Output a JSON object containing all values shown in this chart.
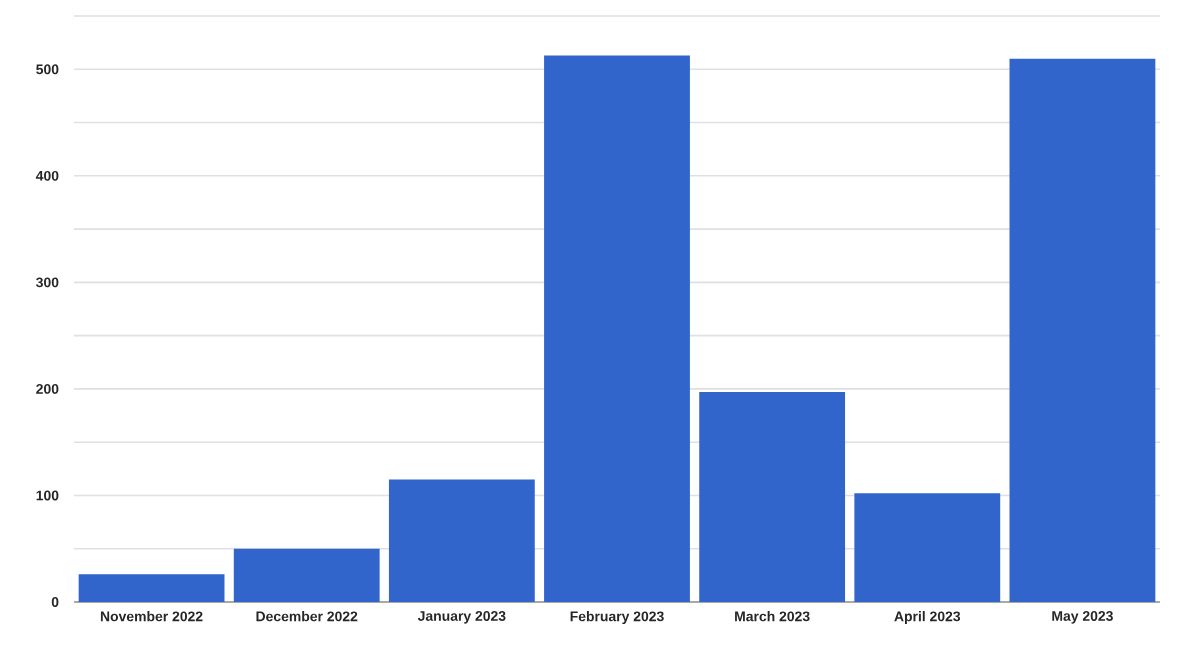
{
  "chart_data": {
    "type": "bar",
    "categories": [
      "November 2022",
      "December 2022",
      "January 2023",
      "February 2023",
      "March 2023",
      "April 2023",
      "May 2023"
    ],
    "values": [
      26,
      50,
      115,
      513,
      197,
      102,
      510
    ],
    "color": "#3165cc",
    "ylim": [
      0,
      550
    ],
    "yticks": [
      0,
      {
        "value": 50,
        "label": null
      },
      100,
      {
        "value": 150,
        "label": null
      },
      200,
      {
        "value": 250,
        "label": null
      },
      300,
      {
        "value": 350,
        "label": null
      },
      400,
      {
        "value": 450,
        "label": null
      },
      500,
      {
        "value": 550,
        "label": null
      }
    ],
    "grid": "y"
  }
}
